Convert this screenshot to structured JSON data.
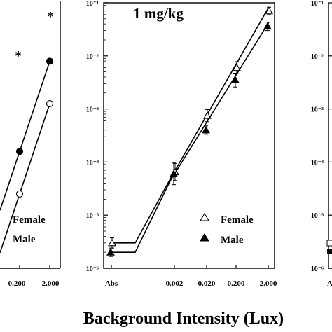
{
  "chart_data": [
    {
      "panel": "left (partially visible)",
      "type": "line",
      "x_tick_labels_visible": [
        "0.200",
        "2.000"
      ],
      "legend": [
        "Female",
        "Male"
      ],
      "annotations": [
        "*",
        "*"
      ],
      "series": [
        {
          "name": "Male",
          "marker": "filled-circle",
          "x": [
            "0.200",
            "2.000"
          ],
          "y_rel": [
            0.44,
            0.78
          ]
        },
        {
          "name": "Female",
          "marker": "open-circle",
          "x": [
            "0.200",
            "2.000"
          ],
          "y_rel": [
            0.28,
            0.62
          ]
        }
      ]
    },
    {
      "panel": "center",
      "type": "line",
      "title": "1 mg/kg",
      "x_categories": [
        "Abs",
        "0.002",
        "0.020",
        "0.200",
        "2.000"
      ],
      "y_scale": "log",
      "ylim": [
        1e-06,
        0.1
      ],
      "y_tick_labels": [
        "10⁻⁶",
        "10⁻⁵",
        "10⁻⁴",
        "10⁻³",
        "10⁻²",
        "10⁻¹"
      ],
      "legend_position": "bottom-right",
      "series": [
        {
          "name": "Female",
          "marker": "open-triangle",
          "values": [
            3e-06,
            6.5e-05,
            0.00075,
            0.006,
            0.07
          ],
          "err_factor": [
            1.25,
            1.45,
            1.3,
            1.3,
            1.18
          ]
        },
        {
          "name": "Male",
          "marker": "filled-triangle",
          "values": [
            2e-06,
            6e-05,
            0.0004,
            0.0035,
            0.036
          ],
          "err_factor": [
            1.2,
            1.6,
            1.2,
            1.35,
            1.2
          ]
        }
      ]
    },
    {
      "panel": "right (partially visible)",
      "type": "line",
      "y_scale": "log",
      "y_tick_labels": [
        "10⁻⁶",
        "10⁻⁵",
        "10⁻⁴",
        "10⁻³",
        "10⁻²",
        "10⁻¹"
      ],
      "x_tick_labels_visible": [
        "A"
      ]
    }
  ],
  "xlabel": "Background Intensity (Lux)"
}
